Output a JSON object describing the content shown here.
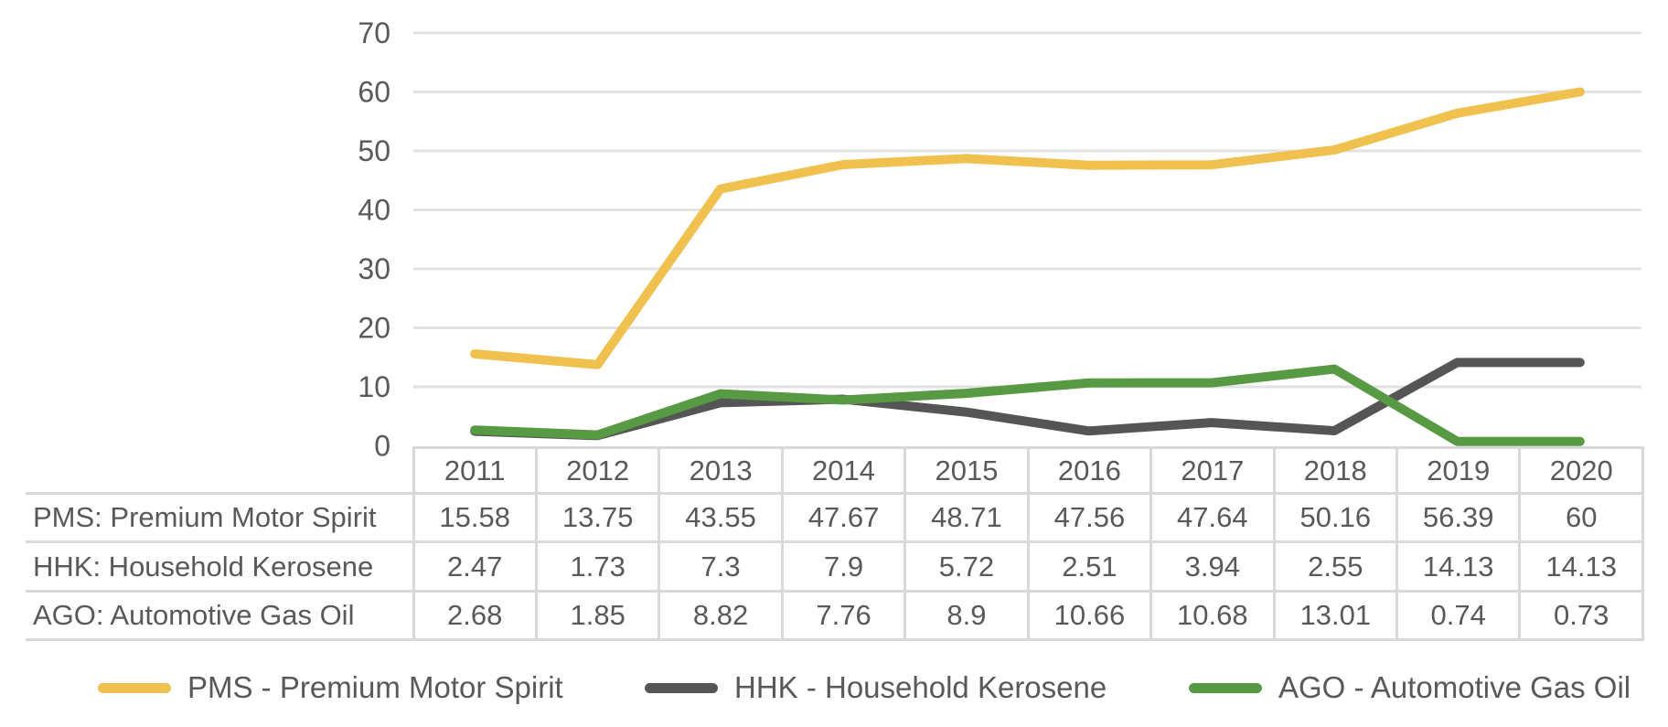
{
  "chart_data": {
    "type": "line",
    "title": "",
    "xlabel": "",
    "ylabel": "",
    "x": [
      2011,
      2012,
      2013,
      2014,
      2015,
      2016,
      2017,
      2018,
      2019,
      2020
    ],
    "series": [
      {
        "id": "pms",
        "name": "PMS - Premium Motor Spirit",
        "color": "#F0C14E",
        "values": [
          15.58,
          13.75,
          43.55,
          47.67,
          48.71,
          47.56,
          47.64,
          50.16,
          56.39,
          60
        ]
      },
      {
        "id": "hhk",
        "name": "HHK - Household Kerosene",
        "color": "#555555",
        "values": [
          2.47,
          1.73,
          7.3,
          7.9,
          5.72,
          2.51,
          3.94,
          2.55,
          14.13,
          14.13
        ]
      },
      {
        "id": "ago",
        "name": "AGO - Automotive Gas Oil",
        "color": "#589A43",
        "values": [
          2.68,
          1.85,
          8.82,
          7.76,
          8.9,
          10.66,
          10.68,
          13.01,
          0.74,
          0.73
        ]
      }
    ],
    "ylim": [
      0,
      70
    ],
    "yticks": [
      0,
      10,
      20,
      30,
      40,
      50,
      60,
      70
    ],
    "grid": true,
    "legend_position": "bottom"
  },
  "table": {
    "years": [
      "2011",
      "2012",
      "2013",
      "2014",
      "2015",
      "2016",
      "2017",
      "2018",
      "2019",
      "2020"
    ],
    "rows": [
      {
        "label": "PMS: Premium Motor Spirit",
        "values": [
          "15.58",
          "13.75",
          "43.55",
          "47.67",
          "48.71",
          "47.56",
          "47.64",
          "50.16",
          "56.39",
          "60"
        ]
      },
      {
        "label": "HHK: Household Kerosene",
        "values": [
          "2.47",
          "1.73",
          "7.3",
          "7.9",
          "5.72",
          "2.51",
          "3.94",
          "2.55",
          "14.13",
          "14.13"
        ]
      },
      {
        "label": "AGO: Automotive Gas Oil",
        "values": [
          "2.68",
          "1.85",
          "8.82",
          "7.76",
          "8.9",
          "10.66",
          "10.68",
          "13.01",
          "0.74",
          "0.73"
        ]
      }
    ]
  },
  "colors": {
    "pms_yellow": "#F0C14E",
    "hhk_gray": "#555555",
    "ago_green": "#589A43",
    "gridline": "#E2E2E2",
    "table_border": "#D9D9D9",
    "text": "#595959"
  }
}
